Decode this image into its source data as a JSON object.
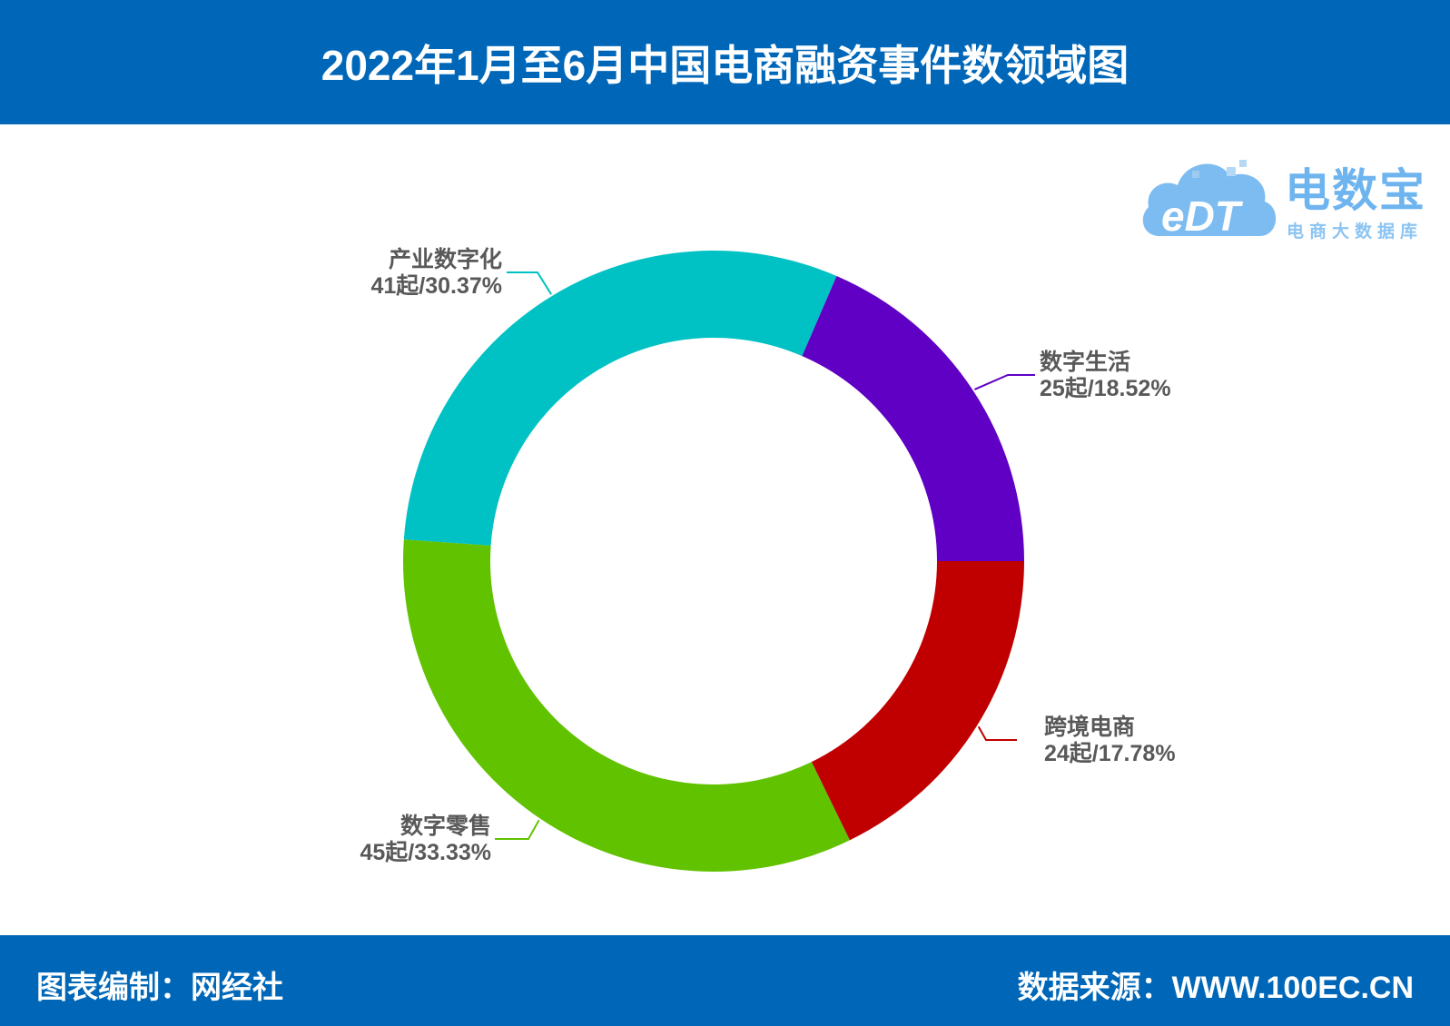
{
  "header": {
    "title": "2022年1月至6月中国电商融资事件数领域图"
  },
  "footer": {
    "left": "图表编制：网经社",
    "right": "数据来源：WWW.100EC.CN"
  },
  "logo": {
    "name": "电数宝",
    "subtitle": "电商大数据库",
    "mark_text": "eDT",
    "icon": "cloud-logo-icon"
  },
  "chart_data": {
    "type": "pie",
    "subtype": "donut",
    "title": "2022年1月至6月中国电商融资事件数领域图",
    "unit": "起",
    "start_angle_deg": 0,
    "direction": "clockwise-from-right",
    "slices": [
      {
        "name": "跨境电商",
        "value": 24,
        "percent": 17.78,
        "label": "24起/17.78%",
        "color": "#c00000"
      },
      {
        "name": "数字零售",
        "value": 45,
        "percent": 33.33,
        "label": "45起/33.33%",
        "color": "#61c200"
      },
      {
        "name": "产业数字化",
        "value": 41,
        "percent": 30.37,
        "label": "41起/30.37%",
        "color": "#00c1c3"
      },
      {
        "name": "数字生活",
        "value": 25,
        "percent": 18.52,
        "label": "25起/18.52%",
        "color": "#5f00c4"
      }
    ]
  }
}
